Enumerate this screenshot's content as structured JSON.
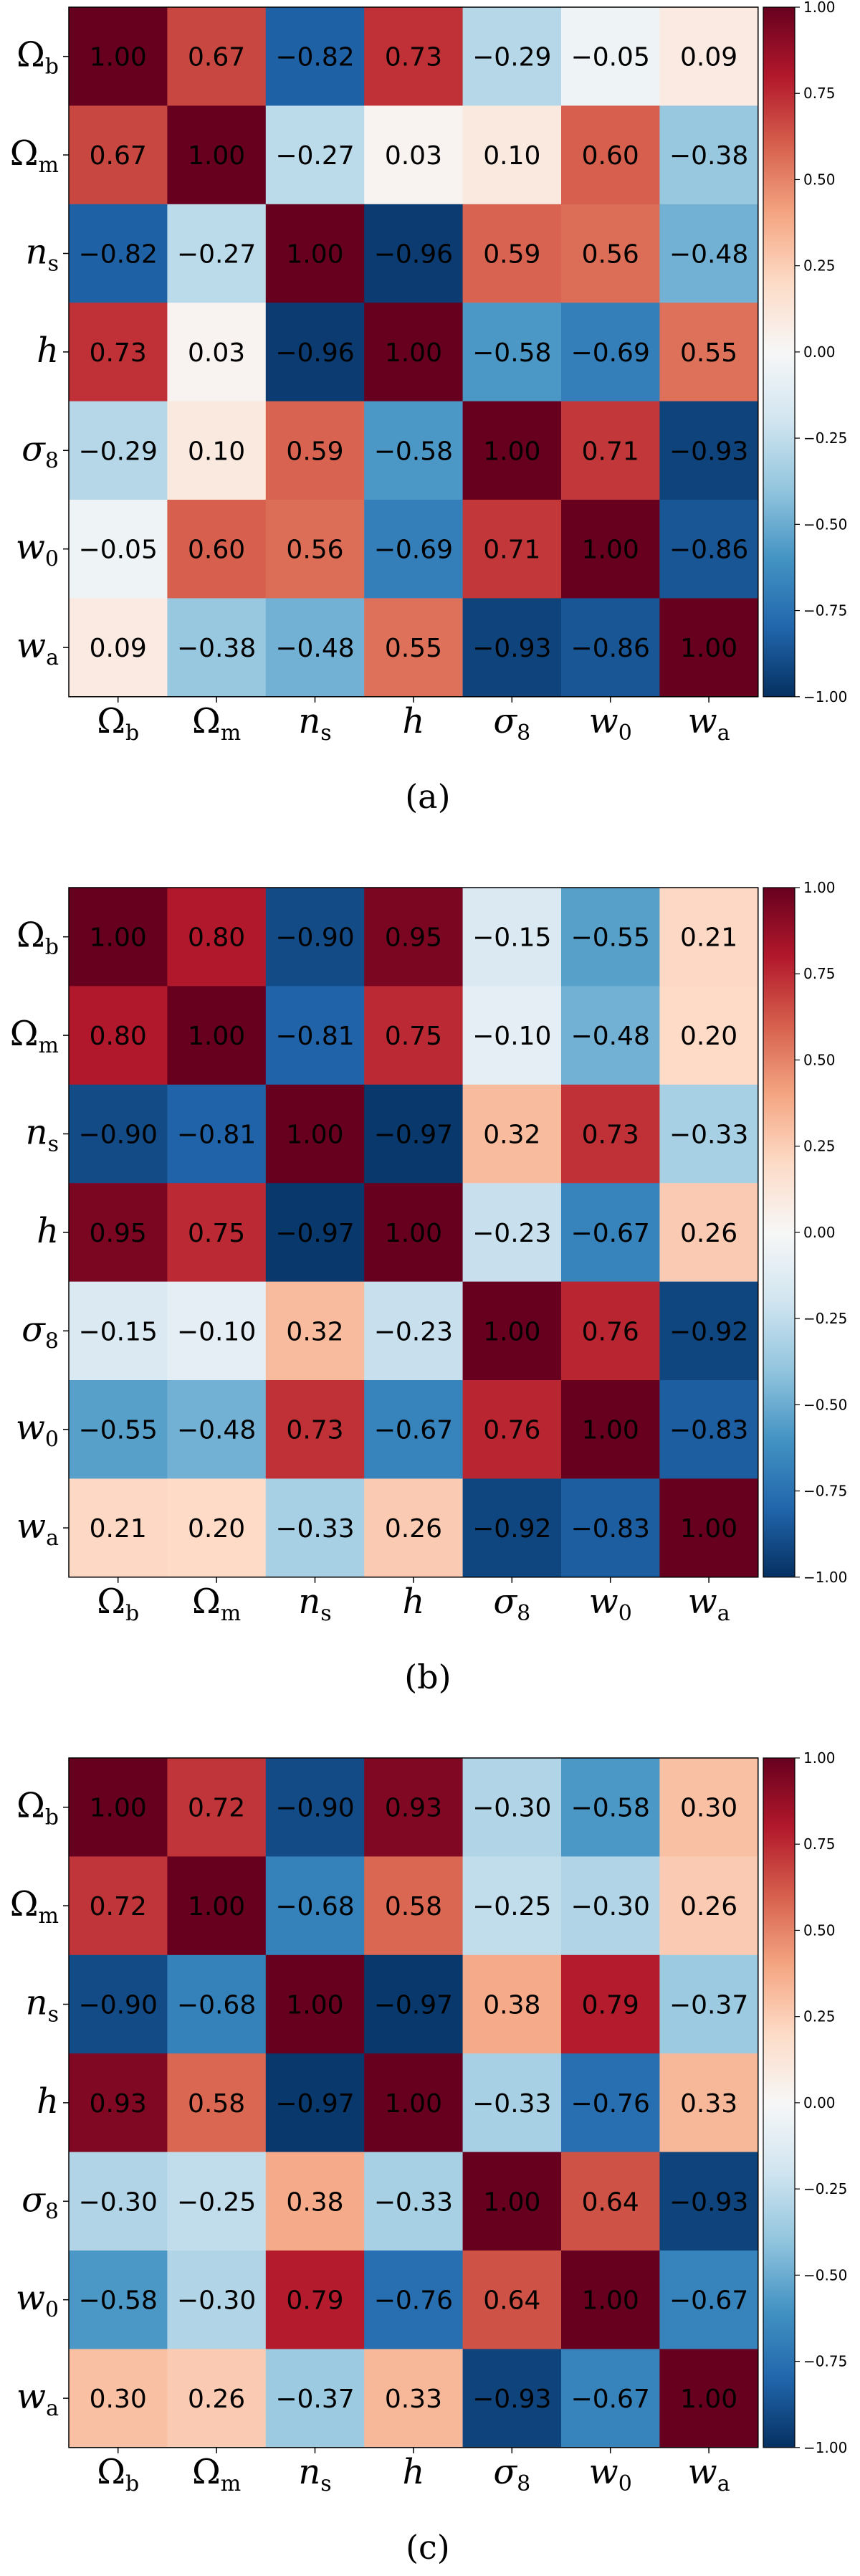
{
  "chart_data": [
    {
      "type": "heatmap",
      "caption": "(a)",
      "rows": [
        {
          "sym": "Ω",
          "sub": "b",
          "italic": false
        },
        {
          "sym": "Ω",
          "sub": "m",
          "italic": false
        },
        {
          "sym": "n",
          "sub": "s",
          "italic": true
        },
        {
          "sym": "h",
          "sub": "",
          "italic": true
        },
        {
          "sym": "σ",
          "sub": "8",
          "italic": true
        },
        {
          "sym": "w",
          "sub": "0",
          "italic": true
        },
        {
          "sym": "w",
          "sub": "a",
          "italic": true
        }
      ],
      "values": [
        [
          1.0,
          0.67,
          -0.82,
          0.73,
          -0.29,
          -0.05,
          0.09
        ],
        [
          0.67,
          1.0,
          -0.27,
          0.03,
          0.1,
          0.6,
          -0.38
        ],
        [
          -0.82,
          -0.27,
          1.0,
          -0.96,
          0.59,
          0.56,
          -0.48
        ],
        [
          0.73,
          0.03,
          -0.96,
          1.0,
          -0.58,
          -0.69,
          0.55
        ],
        [
          -0.29,
          0.1,
          0.59,
          -0.58,
          1.0,
          0.71,
          -0.93
        ],
        [
          -0.05,
          0.6,
          0.56,
          -0.69,
          0.71,
          1.0,
          -0.86
        ],
        [
          0.09,
          -0.38,
          -0.48,
          0.55,
          -0.93,
          -0.86,
          1.0
        ]
      ],
      "vmin": -1.0,
      "vmax": 1.0,
      "colorbar_ticks": [
        "1.00",
        "0.75",
        "0.50",
        "0.25",
        "0.00",
        "−0.25",
        "−0.50",
        "−0.75",
        "−1.00"
      ]
    },
    {
      "type": "heatmap",
      "caption": "(b)",
      "rows": [
        {
          "sym": "Ω",
          "sub": "b",
          "italic": false
        },
        {
          "sym": "Ω",
          "sub": "m",
          "italic": false
        },
        {
          "sym": "n",
          "sub": "s",
          "italic": true
        },
        {
          "sym": "h",
          "sub": "",
          "italic": true
        },
        {
          "sym": "σ",
          "sub": "8",
          "italic": true
        },
        {
          "sym": "w",
          "sub": "0",
          "italic": true
        },
        {
          "sym": "w",
          "sub": "a",
          "italic": true
        }
      ],
      "values": [
        [
          1.0,
          0.8,
          -0.9,
          0.95,
          -0.15,
          -0.55,
          0.21
        ],
        [
          0.8,
          1.0,
          -0.81,
          0.75,
          -0.1,
          -0.48,
          0.2
        ],
        [
          -0.9,
          -0.81,
          1.0,
          -0.97,
          0.32,
          0.73,
          -0.33
        ],
        [
          0.95,
          0.75,
          -0.97,
          1.0,
          -0.23,
          -0.67,
          0.26
        ],
        [
          -0.15,
          -0.1,
          0.32,
          -0.23,
          1.0,
          0.76,
          -0.92
        ],
        [
          -0.55,
          -0.48,
          0.73,
          -0.67,
          0.76,
          1.0,
          -0.83
        ],
        [
          0.21,
          0.2,
          -0.33,
          0.26,
          -0.92,
          -0.83,
          1.0
        ]
      ],
      "vmin": -1.0,
      "vmax": 1.0,
      "colorbar_ticks": [
        "1.00",
        "0.75",
        "0.50",
        "0.25",
        "0.00",
        "−0.25",
        "−0.50",
        "−0.75",
        "−1.00"
      ]
    },
    {
      "type": "heatmap",
      "caption": "(c)",
      "rows": [
        {
          "sym": "Ω",
          "sub": "b",
          "italic": false
        },
        {
          "sym": "Ω",
          "sub": "m",
          "italic": false
        },
        {
          "sym": "n",
          "sub": "s",
          "italic": true
        },
        {
          "sym": "h",
          "sub": "",
          "italic": true
        },
        {
          "sym": "σ",
          "sub": "8",
          "italic": true
        },
        {
          "sym": "w",
          "sub": "0",
          "italic": true
        },
        {
          "sym": "w",
          "sub": "a",
          "italic": true
        }
      ],
      "values": [
        [
          1.0,
          0.72,
          -0.9,
          0.93,
          -0.3,
          -0.58,
          0.3
        ],
        [
          0.72,
          1.0,
          -0.68,
          0.58,
          -0.25,
          -0.3,
          0.26
        ],
        [
          -0.9,
          -0.68,
          1.0,
          -0.97,
          0.38,
          0.79,
          -0.37
        ],
        [
          0.93,
          0.58,
          -0.97,
          1.0,
          -0.33,
          -0.76,
          0.33
        ],
        [
          -0.3,
          -0.25,
          0.38,
          -0.33,
          1.0,
          0.64,
          -0.93
        ],
        [
          -0.58,
          -0.3,
          0.79,
          -0.76,
          0.64,
          1.0,
          -0.67
        ],
        [
          0.3,
          0.26,
          -0.37,
          0.33,
          -0.93,
          -0.67,
          1.0
        ]
      ],
      "vmin": -1.0,
      "vmax": 1.0,
      "colorbar_ticks": [
        "1.00",
        "0.75",
        "0.50",
        "0.25",
        "0.00",
        "−0.25",
        "−0.50",
        "−0.75",
        "−1.00"
      ]
    }
  ]
}
